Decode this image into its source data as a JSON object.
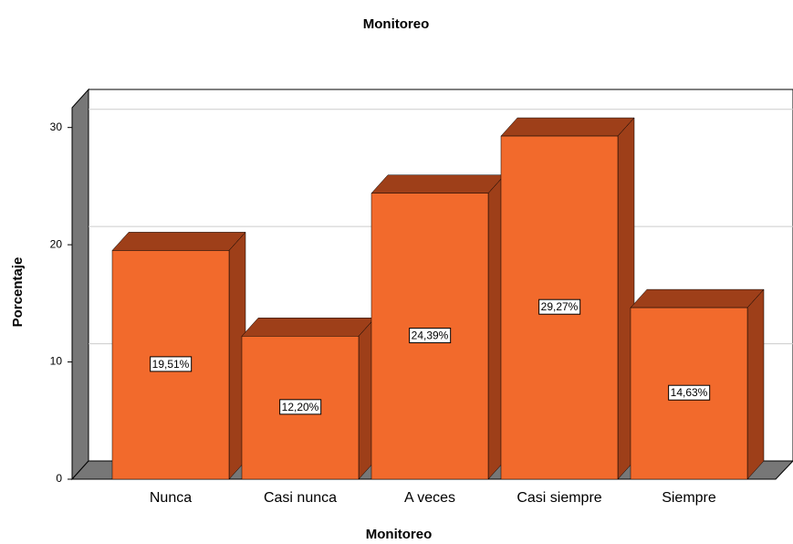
{
  "chart_data": {
    "type": "bar3d",
    "title": "Monitoreo",
    "xlabel": "Monitoreo",
    "ylabel": "Porcentaje",
    "categories": [
      "Nunca",
      "Casi nunca",
      "A veces",
      "Casi siempre",
      "Siempre"
    ],
    "values": [
      19.51,
      12.2,
      24.39,
      29.27,
      14.63
    ],
    "value_labels": [
      "19,51%",
      "12,20%",
      "24,39%",
      "29,27%",
      "14,63%"
    ],
    "color": "#f26a2c",
    "shade_color": "#9e3f19",
    "ylim": [
      0,
      32
    ],
    "yticks": [
      0,
      10,
      20,
      30
    ],
    "grid": true
  }
}
